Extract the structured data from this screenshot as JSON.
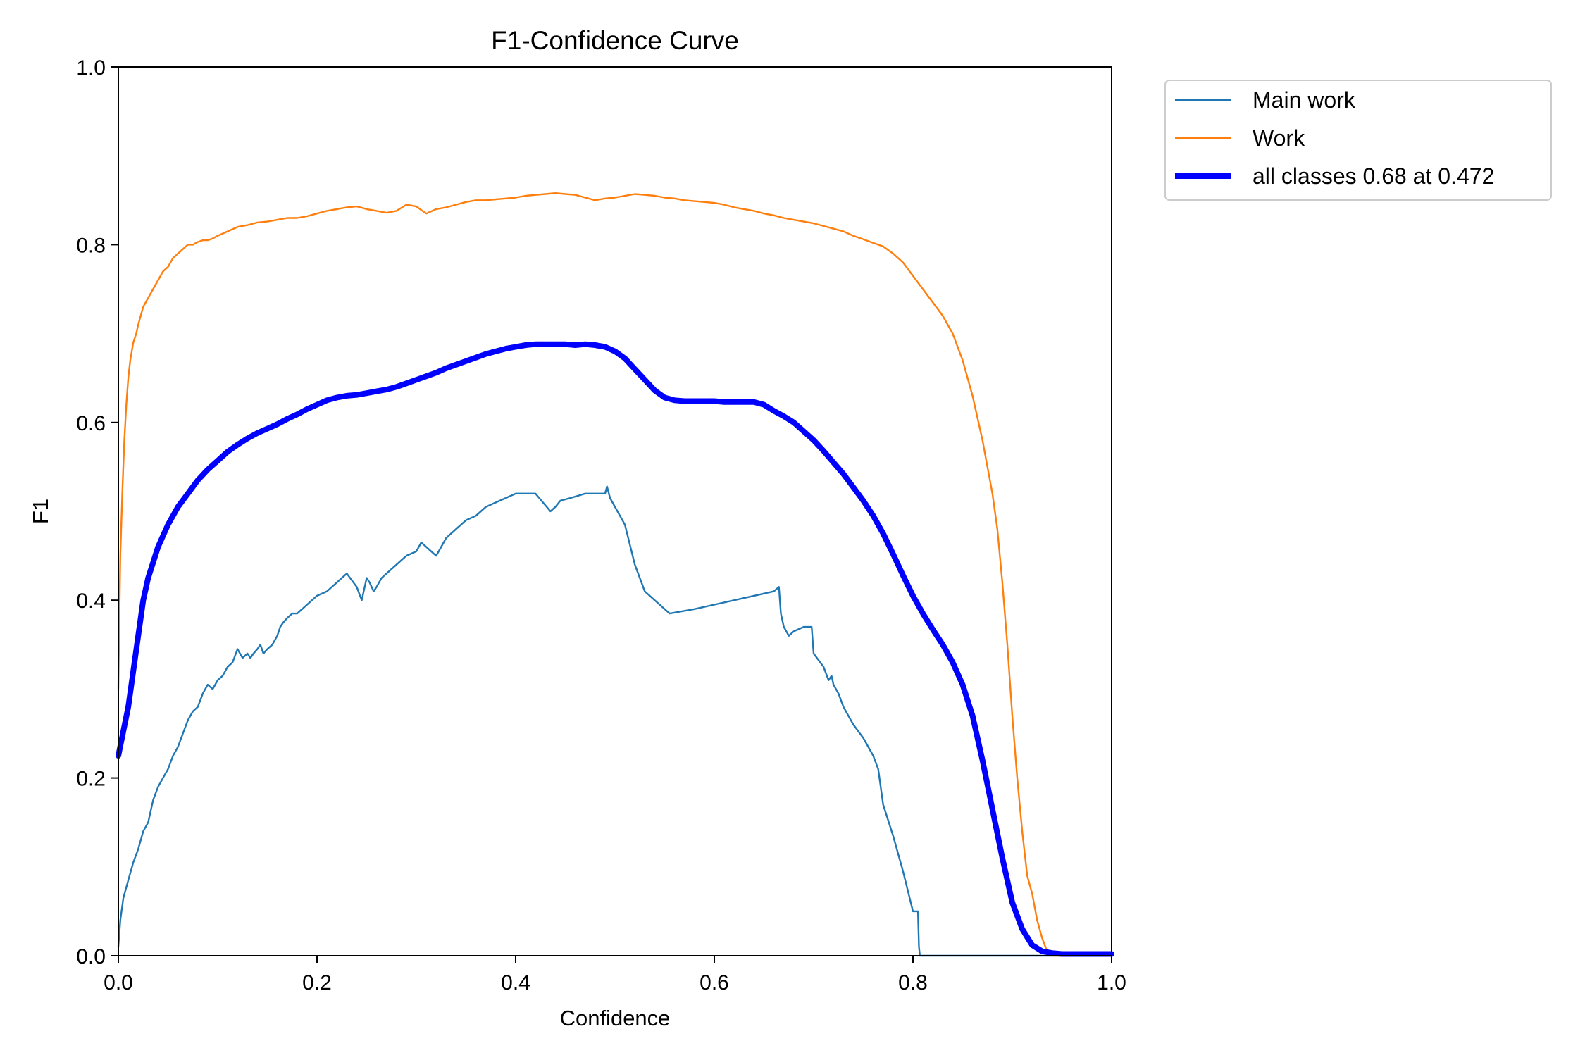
{
  "chart_data": {
    "type": "line",
    "title": "F1-Confidence Curve",
    "xlabel": "Confidence",
    "ylabel": "F1",
    "xlim": [
      0,
      1
    ],
    "ylim": [
      0,
      1
    ],
    "xticks": [
      "0.0",
      "0.2",
      "0.4",
      "0.6",
      "0.8",
      "1.0"
    ],
    "yticks": [
      "0.0",
      "0.2",
      "0.4",
      "0.6",
      "0.8",
      "1.0"
    ],
    "grid": false,
    "legend_position": "outside-top-right",
    "series": [
      {
        "name": "Main work",
        "color": "#1f77b4",
        "style": "thin",
        "x": [
          0.0,
          0.002,
          0.005,
          0.01,
          0.015,
          0.02,
          0.025,
          0.03,
          0.035,
          0.04,
          0.045,
          0.05,
          0.055,
          0.06,
          0.065,
          0.07,
          0.075,
          0.08,
          0.085,
          0.09,
          0.095,
          0.1,
          0.105,
          0.11,
          0.115,
          0.12,
          0.125,
          0.13,
          0.133,
          0.136,
          0.14,
          0.143,
          0.146,
          0.15,
          0.155,
          0.16,
          0.163,
          0.166,
          0.17,
          0.175,
          0.18,
          0.185,
          0.19,
          0.2,
          0.21,
          0.22,
          0.23,
          0.24,
          0.245,
          0.25,
          0.253,
          0.257,
          0.26,
          0.265,
          0.27,
          0.28,
          0.285,
          0.29,
          0.3,
          0.305,
          0.31,
          0.315,
          0.32,
          0.325,
          0.33,
          0.34,
          0.345,
          0.35,
          0.36,
          0.37,
          0.38,
          0.39,
          0.4,
          0.42,
          0.435,
          0.44,
          0.445,
          0.455,
          0.47,
          0.49,
          0.492,
          0.495,
          0.5,
          0.51,
          0.52,
          0.53,
          0.555,
          0.58,
          0.6,
          0.64,
          0.66,
          0.665,
          0.667,
          0.67,
          0.675,
          0.68,
          0.69,
          0.698,
          0.7,
          0.71,
          0.715,
          0.718,
          0.72,
          0.725,
          0.73,
          0.74,
          0.75,
          0.76,
          0.765,
          0.77,
          0.78,
          0.79,
          0.8,
          0.805,
          0.806,
          0.807,
          0.81,
          0.9,
          1.0
        ],
        "y": [
          0.01,
          0.04,
          0.065,
          0.085,
          0.105,
          0.12,
          0.14,
          0.15,
          0.175,
          0.19,
          0.2,
          0.21,
          0.225,
          0.235,
          0.25,
          0.265,
          0.275,
          0.28,
          0.295,
          0.305,
          0.3,
          0.31,
          0.315,
          0.325,
          0.33,
          0.345,
          0.335,
          0.34,
          0.335,
          0.34,
          0.345,
          0.35,
          0.34,
          0.345,
          0.35,
          0.36,
          0.37,
          0.375,
          0.38,
          0.385,
          0.385,
          0.39,
          0.395,
          0.405,
          0.41,
          0.42,
          0.43,
          0.415,
          0.4,
          0.425,
          0.42,
          0.41,
          0.415,
          0.425,
          0.43,
          0.44,
          0.445,
          0.45,
          0.455,
          0.465,
          0.46,
          0.455,
          0.45,
          0.46,
          0.47,
          0.48,
          0.485,
          0.49,
          0.495,
          0.505,
          0.51,
          0.515,
          0.52,
          0.52,
          0.5,
          0.505,
          0.512,
          0.515,
          0.52,
          0.52,
          0.528,
          0.515,
          0.505,
          0.485,
          0.44,
          0.41,
          0.385,
          0.39,
          0.395,
          0.405,
          0.41,
          0.415,
          0.385,
          0.37,
          0.36,
          0.365,
          0.37,
          0.37,
          0.34,
          0.325,
          0.31,
          0.315,
          0.305,
          0.295,
          0.28,
          0.26,
          0.245,
          0.225,
          0.21,
          0.17,
          0.135,
          0.095,
          0.05,
          0.05,
          0.01,
          0.0,
          0.0,
          0.0,
          0.0
        ]
      },
      {
        "name": "Work",
        "color": "#ff7f0e",
        "style": "thin",
        "x": [
          0.0,
          0.002,
          0.004,
          0.006,
          0.008,
          0.01,
          0.012,
          0.015,
          0.018,
          0.02,
          0.025,
          0.03,
          0.035,
          0.04,
          0.045,
          0.05,
          0.055,
          0.06,
          0.065,
          0.07,
          0.075,
          0.08,
          0.085,
          0.09,
          0.095,
          0.1,
          0.11,
          0.12,
          0.13,
          0.14,
          0.15,
          0.16,
          0.17,
          0.18,
          0.19,
          0.2,
          0.21,
          0.22,
          0.23,
          0.24,
          0.25,
          0.26,
          0.27,
          0.28,
          0.29,
          0.3,
          0.31,
          0.32,
          0.33,
          0.34,
          0.35,
          0.36,
          0.37,
          0.38,
          0.39,
          0.4,
          0.41,
          0.42,
          0.43,
          0.44,
          0.45,
          0.46,
          0.47,
          0.48,
          0.49,
          0.5,
          0.51,
          0.52,
          0.53,
          0.54,
          0.55,
          0.56,
          0.57,
          0.58,
          0.59,
          0.6,
          0.61,
          0.62,
          0.63,
          0.64,
          0.65,
          0.66,
          0.67,
          0.68,
          0.69,
          0.7,
          0.71,
          0.72,
          0.73,
          0.74,
          0.75,
          0.76,
          0.77,
          0.78,
          0.79,
          0.8,
          0.81,
          0.82,
          0.83,
          0.84,
          0.85,
          0.86,
          0.87,
          0.88,
          0.885,
          0.89,
          0.895,
          0.9,
          0.905,
          0.91,
          0.915,
          0.92,
          0.925,
          0.93,
          0.935,
          0.94,
          1.0
        ],
        "y": [
          0.3,
          0.45,
          0.52,
          0.58,
          0.62,
          0.65,
          0.67,
          0.69,
          0.7,
          0.71,
          0.73,
          0.74,
          0.75,
          0.76,
          0.77,
          0.775,
          0.785,
          0.79,
          0.795,
          0.8,
          0.8,
          0.803,
          0.805,
          0.805,
          0.807,
          0.81,
          0.815,
          0.82,
          0.822,
          0.825,
          0.826,
          0.828,
          0.83,
          0.83,
          0.832,
          0.835,
          0.838,
          0.84,
          0.842,
          0.843,
          0.84,
          0.838,
          0.836,
          0.838,
          0.845,
          0.843,
          0.835,
          0.84,
          0.842,
          0.845,
          0.848,
          0.85,
          0.85,
          0.851,
          0.852,
          0.853,
          0.855,
          0.856,
          0.857,
          0.858,
          0.857,
          0.856,
          0.853,
          0.85,
          0.852,
          0.853,
          0.855,
          0.857,
          0.856,
          0.855,
          0.853,
          0.852,
          0.85,
          0.849,
          0.848,
          0.847,
          0.845,
          0.842,
          0.84,
          0.838,
          0.835,
          0.833,
          0.83,
          0.828,
          0.826,
          0.824,
          0.821,
          0.818,
          0.815,
          0.81,
          0.806,
          0.802,
          0.798,
          0.79,
          0.78,
          0.765,
          0.75,
          0.735,
          0.72,
          0.7,
          0.67,
          0.63,
          0.58,
          0.52,
          0.48,
          0.42,
          0.35,
          0.27,
          0.2,
          0.14,
          0.09,
          0.07,
          0.04,
          0.02,
          0.005,
          0.0,
          0.0
        ]
      },
      {
        "name": "all classes 0.68 at 0.472",
        "color": "#0000ff",
        "style": "thick",
        "x": [
          0.0,
          0.01,
          0.02,
          0.025,
          0.03,
          0.04,
          0.05,
          0.06,
          0.07,
          0.08,
          0.09,
          0.1,
          0.11,
          0.12,
          0.13,
          0.14,
          0.15,
          0.16,
          0.17,
          0.18,
          0.19,
          0.2,
          0.21,
          0.22,
          0.23,
          0.24,
          0.25,
          0.26,
          0.27,
          0.28,
          0.29,
          0.3,
          0.31,
          0.32,
          0.33,
          0.34,
          0.35,
          0.36,
          0.37,
          0.38,
          0.39,
          0.4,
          0.41,
          0.42,
          0.43,
          0.44,
          0.45,
          0.46,
          0.47,
          0.48,
          0.49,
          0.5,
          0.51,
          0.52,
          0.53,
          0.54,
          0.55,
          0.56,
          0.57,
          0.58,
          0.59,
          0.6,
          0.61,
          0.62,
          0.63,
          0.64,
          0.65,
          0.66,
          0.67,
          0.68,
          0.69,
          0.7,
          0.71,
          0.72,
          0.73,
          0.74,
          0.75,
          0.76,
          0.77,
          0.78,
          0.79,
          0.8,
          0.81,
          0.82,
          0.83,
          0.84,
          0.85,
          0.86,
          0.87,
          0.88,
          0.89,
          0.9,
          0.91,
          0.92,
          0.93,
          0.94,
          0.95,
          0.96,
          0.97,
          0.98,
          1.0
        ],
        "y": [
          0.225,
          0.28,
          0.36,
          0.4,
          0.425,
          0.46,
          0.485,
          0.505,
          0.52,
          0.535,
          0.547,
          0.557,
          0.567,
          0.575,
          0.582,
          0.588,
          0.593,
          0.598,
          0.604,
          0.609,
          0.615,
          0.62,
          0.625,
          0.628,
          0.63,
          0.631,
          0.633,
          0.635,
          0.637,
          0.64,
          0.644,
          0.648,
          0.652,
          0.656,
          0.661,
          0.665,
          0.669,
          0.673,
          0.677,
          0.68,
          0.683,
          0.685,
          0.687,
          0.688,
          0.688,
          0.688,
          0.688,
          0.687,
          0.688,
          0.687,
          0.685,
          0.68,
          0.672,
          0.66,
          0.648,
          0.636,
          0.628,
          0.625,
          0.624,
          0.624,
          0.624,
          0.624,
          0.623,
          0.623,
          0.623,
          0.623,
          0.62,
          0.613,
          0.607,
          0.6,
          0.59,
          0.58,
          0.568,
          0.555,
          0.542,
          0.527,
          0.512,
          0.495,
          0.475,
          0.452,
          0.428,
          0.405,
          0.385,
          0.367,
          0.35,
          0.33,
          0.305,
          0.27,
          0.22,
          0.165,
          0.11,
          0.06,
          0.03,
          0.012,
          0.005,
          0.003,
          0.002,
          0.002,
          0.002,
          0.002,
          0.002
        ]
      }
    ]
  }
}
